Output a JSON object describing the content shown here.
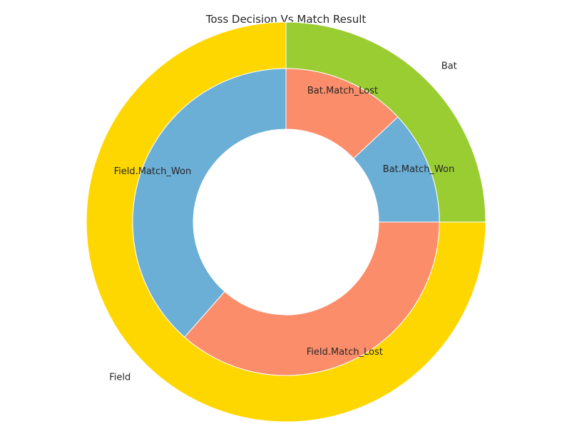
{
  "chart_data": {
    "type": "pie",
    "title": "Toss Decision Vs Match Result",
    "outer": {
      "categories": [
        "Bat",
        "Field"
      ],
      "values": [
        0.25,
        0.75
      ],
      "colors": [
        "#9acd32",
        "#ffd700"
      ]
    },
    "inner": {
      "categories": [
        "Bat.Match_Won",
        "Bat.Match_Lost",
        "Field.Match_Won",
        "Field.Match_Lost"
      ],
      "values": [
        0.12,
        0.13,
        0.385,
        0.365
      ],
      "colors": [
        "#6baed6",
        "#fc8d6a",
        "#6baed6",
        "#fc8d6a"
      ]
    },
    "start_angle_deg": 0,
    "direction": "counterclockwise",
    "wedge_edge_color": "#ffffff"
  }
}
